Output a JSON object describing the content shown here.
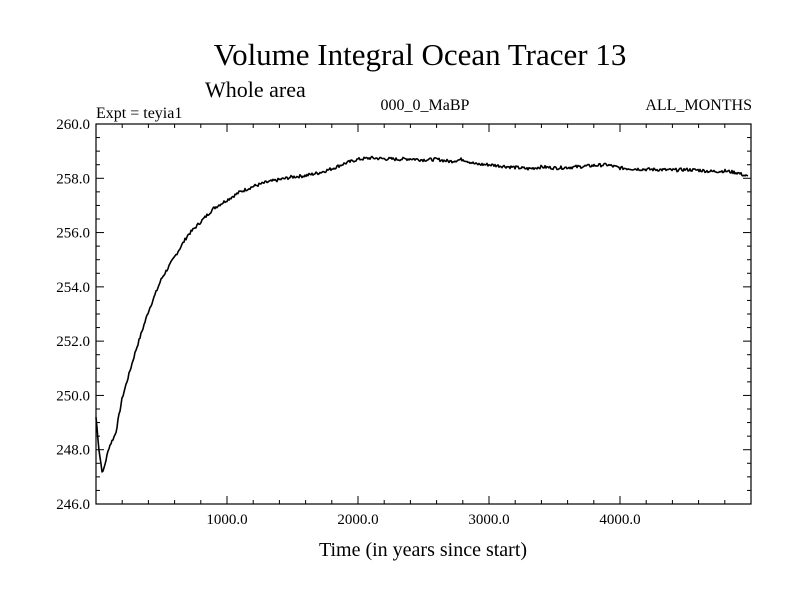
{
  "chart_data": {
    "type": "line",
    "title": "Volume Integral Ocean Tracer 13",
    "subtitle": "Whole area",
    "experiment_label": "Expt = teyia1",
    "period_label": "000_0_MaBP",
    "months_label": "ALL_MONTHS",
    "xlabel": "Time (in years since start)",
    "ylabel": "",
    "xlim": [
      0,
      5000
    ],
    "ylim": [
      246.0,
      260.0
    ],
    "x_ticks": [
      1000,
      2000,
      3000,
      4000
    ],
    "x_tick_labels": [
      "1000.0",
      "2000.0",
      "3000.0",
      "4000.0"
    ],
    "y_ticks": [
      246,
      248,
      250,
      252,
      254,
      256,
      258,
      260
    ],
    "y_tick_labels": [
      "246.0",
      "248.0",
      "250.0",
      "252.0",
      "254.0",
      "256.0",
      "258.0",
      "260.0"
    ],
    "grid": false,
    "series": [
      {
        "name": "Volume Integral Ocean Tracer 13",
        "color": "#000000",
        "x": [
          0,
          25,
          50,
          75,
          100,
          150,
          200,
          300,
          400,
          500,
          600,
          700,
          800,
          900,
          1000,
          1100,
          1200,
          1300,
          1400,
          1500,
          1600,
          1700,
          1800,
          1900,
          2000,
          2100,
          2200,
          2300,
          2400,
          2500,
          2600,
          2700,
          2800,
          2900,
          3000,
          3100,
          3200,
          3300,
          3400,
          3500,
          3600,
          3700,
          3800,
          3900,
          4000,
          4100,
          4200,
          4300,
          4400,
          4500,
          4600,
          4700,
          4800,
          4900,
          4980
        ],
        "values": [
          249.2,
          247.9,
          247.1,
          247.6,
          248.1,
          248.6,
          249.9,
          251.6,
          253.1,
          254.3,
          255.1,
          255.9,
          256.4,
          256.9,
          257.2,
          257.5,
          257.7,
          257.85,
          257.95,
          258.05,
          258.1,
          258.2,
          258.35,
          258.55,
          258.7,
          258.75,
          258.72,
          258.7,
          258.72,
          258.68,
          258.7,
          258.62,
          258.7,
          258.52,
          258.5,
          258.45,
          258.4,
          258.35,
          258.42,
          258.38,
          258.4,
          258.43,
          258.47,
          258.5,
          258.38,
          258.35,
          258.33,
          258.32,
          258.3,
          258.32,
          258.3,
          258.25,
          258.27,
          258.2,
          258.05
        ]
      }
    ]
  }
}
